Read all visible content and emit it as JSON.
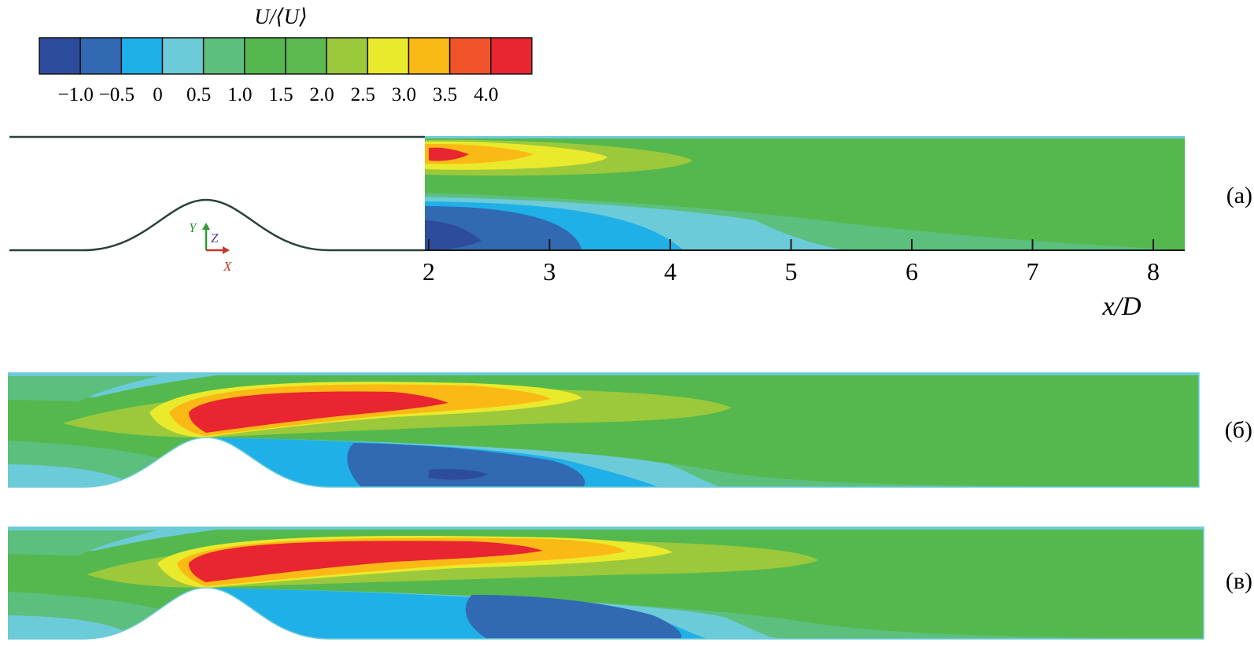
{
  "colorbar": {
    "title": "U/⟨U⟩",
    "colors": [
      "#2e4c9c",
      "#3169b3",
      "#1fb0e8",
      "#6ccbd8",
      "#5cbf7e",
      "#54b84e",
      "#5ab94f",
      "#9bc93b",
      "#eaea2c",
      "#fbb916",
      "#f1542a",
      "#e82530"
    ],
    "ticks": [
      "−1.0",
      "−0.5",
      "0",
      "0.5",
      "1.0",
      "1.5",
      "2.0",
      "2.5",
      "3.0",
      "3.5",
      "4.0"
    ]
  },
  "axis": {
    "label": "x/D",
    "ticks": [
      "2",
      "3",
      "4",
      "5",
      "6",
      "7",
      "8"
    ]
  },
  "axes_triad": {
    "y": "Y",
    "z": "Z",
    "x": "X"
  },
  "panels": [
    {
      "label": "(а)"
    },
    {
      "label": "(б)"
    },
    {
      "label": "(в)"
    }
  ]
}
